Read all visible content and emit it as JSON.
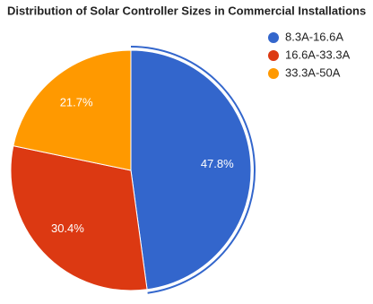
{
  "chart_data": {
    "type": "pie",
    "title": "Distribution of Solar Controller Sizes in Commercial Installations",
    "categories": [
      "8.3A-16.6A",
      "16.6A-33.3A",
      "33.3A-50A"
    ],
    "values": [
      47.8,
      30.4,
      21.7
    ],
    "value_labels": [
      "47.8%",
      "30.4%",
      "21.7%"
    ],
    "colors": [
      "#3366cc",
      "#dc3912",
      "#ff9900"
    ],
    "legend": "right"
  }
}
